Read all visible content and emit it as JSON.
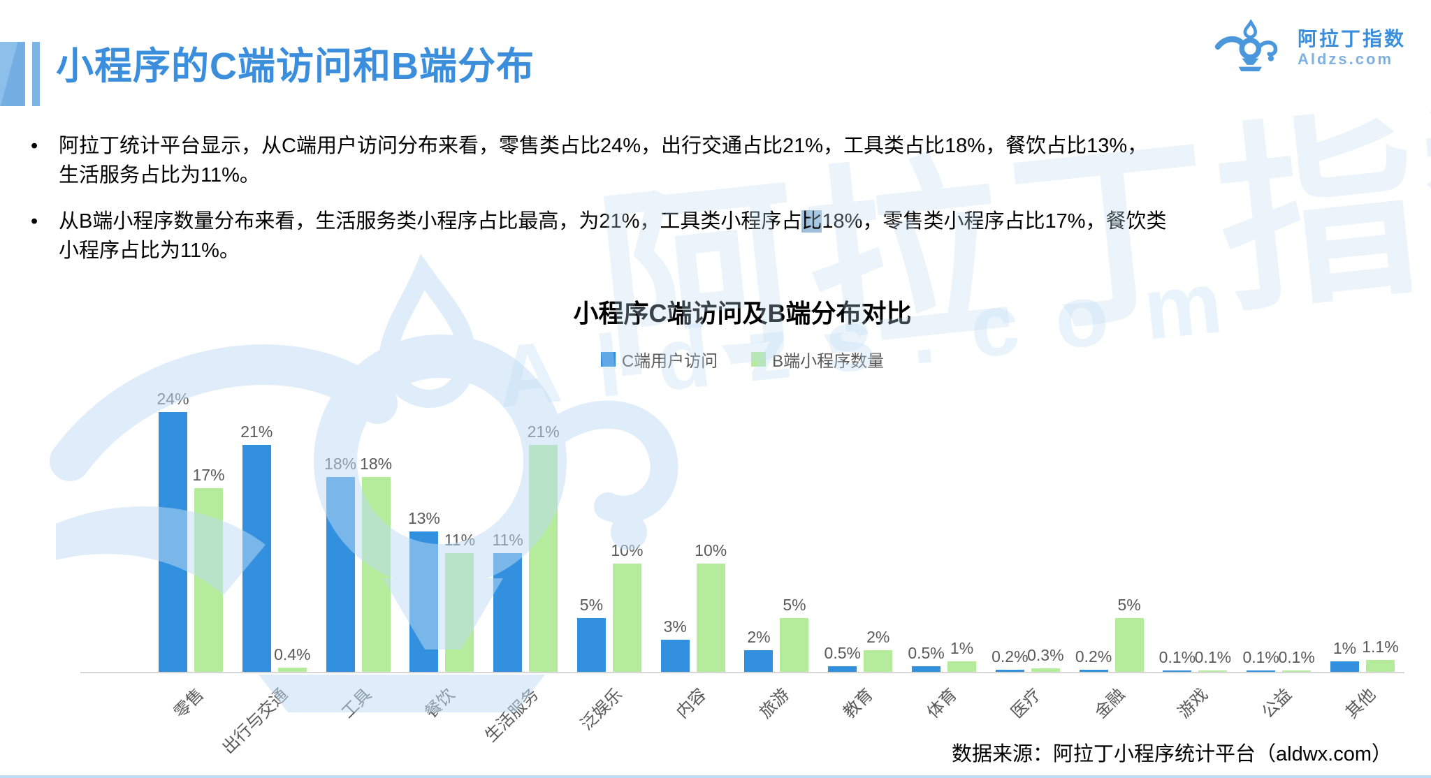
{
  "page": {
    "title": "小程序的C端访问和B端分布",
    "bullet_char": "•",
    "footer_source": "数据来源：阿拉丁小程序统计平台（aldwx.com）"
  },
  "logo": {
    "icon": "aladdin-lamp-icon",
    "name_cn": "阿拉丁指数",
    "domain": "Aldzs.com"
  },
  "bullets": [
    {
      "line1": "阿拉丁统计平台显示，从C端用户访问分布来看，零售类占比24%，出行交通占比21%，工具类占比18%，餐饮占比13%，",
      "line2": "生活服务占比为11%。"
    },
    {
      "line1_pre": "从B端小程序数量分布来看，生活服务类小程序占比最高，为21%，工具类小程序占",
      "highlight": "比",
      "line1_post": "18%，零售类小程序占比17%，餐饮类",
      "line2": "小程序占比为11%。"
    }
  ],
  "chart_data": {
    "type": "bar",
    "title": "小程序C端访问及B端分布对比",
    "categories": [
      "零售",
      "出行与交通",
      "工具",
      "餐饮",
      "生活服务",
      "泛娱乐",
      "内容",
      "旅游",
      "教育",
      "体育",
      "医疗",
      "金融",
      "游戏",
      "公益",
      "其他"
    ],
    "series": [
      {
        "name": "C端用户访问",
        "color": "#3390de",
        "values": [
          24,
          21,
          18,
          13,
          11,
          5,
          3,
          2,
          0.5,
          0.5,
          0.2,
          0.2,
          0.1,
          0.1,
          1
        ],
        "labels": [
          "24%",
          "21%",
          "18%",
          "13%",
          "11%",
          "5%",
          "3%",
          "2%",
          "0.5%",
          "0.5%",
          "0.2%",
          "0.2%",
          "0.1%",
          "0.1%",
          "1%"
        ]
      },
      {
        "name": "B端小程序数量",
        "color": "#b4ec9c",
        "values": [
          17,
          0.4,
          18,
          11,
          21,
          10,
          10,
          5,
          2,
          1,
          0.3,
          5,
          0.1,
          0.1,
          1.1
        ],
        "labels": [
          "17%",
          "0.4%",
          "18%",
          "11%",
          "21%",
          "10%",
          "10%",
          "5%",
          "2%",
          "1%",
          "0.3%",
          "5%",
          "0.1%",
          "0.1%",
          "1.1%"
        ]
      }
    ],
    "value_suffix": "%",
    "xlabel": "",
    "ylabel": "",
    "ylim": [
      0,
      25
    ],
    "grid": false,
    "legend_position": "top",
    "bar_label_color": "#595959",
    "axis_line_color": "#d6d6d6"
  },
  "watermark": {
    "text_cn": "阿拉丁指数",
    "text_en": "Aldzs.com"
  },
  "colors": {
    "title_blue": "#3a8edb",
    "series_c_blue": "#3390de",
    "series_b_green": "#b4ec9c",
    "selection_highlight": "#9fbfdc",
    "watermark_blue": "#bedcf4",
    "bottom_strip_blue": "#bfddf2"
  }
}
